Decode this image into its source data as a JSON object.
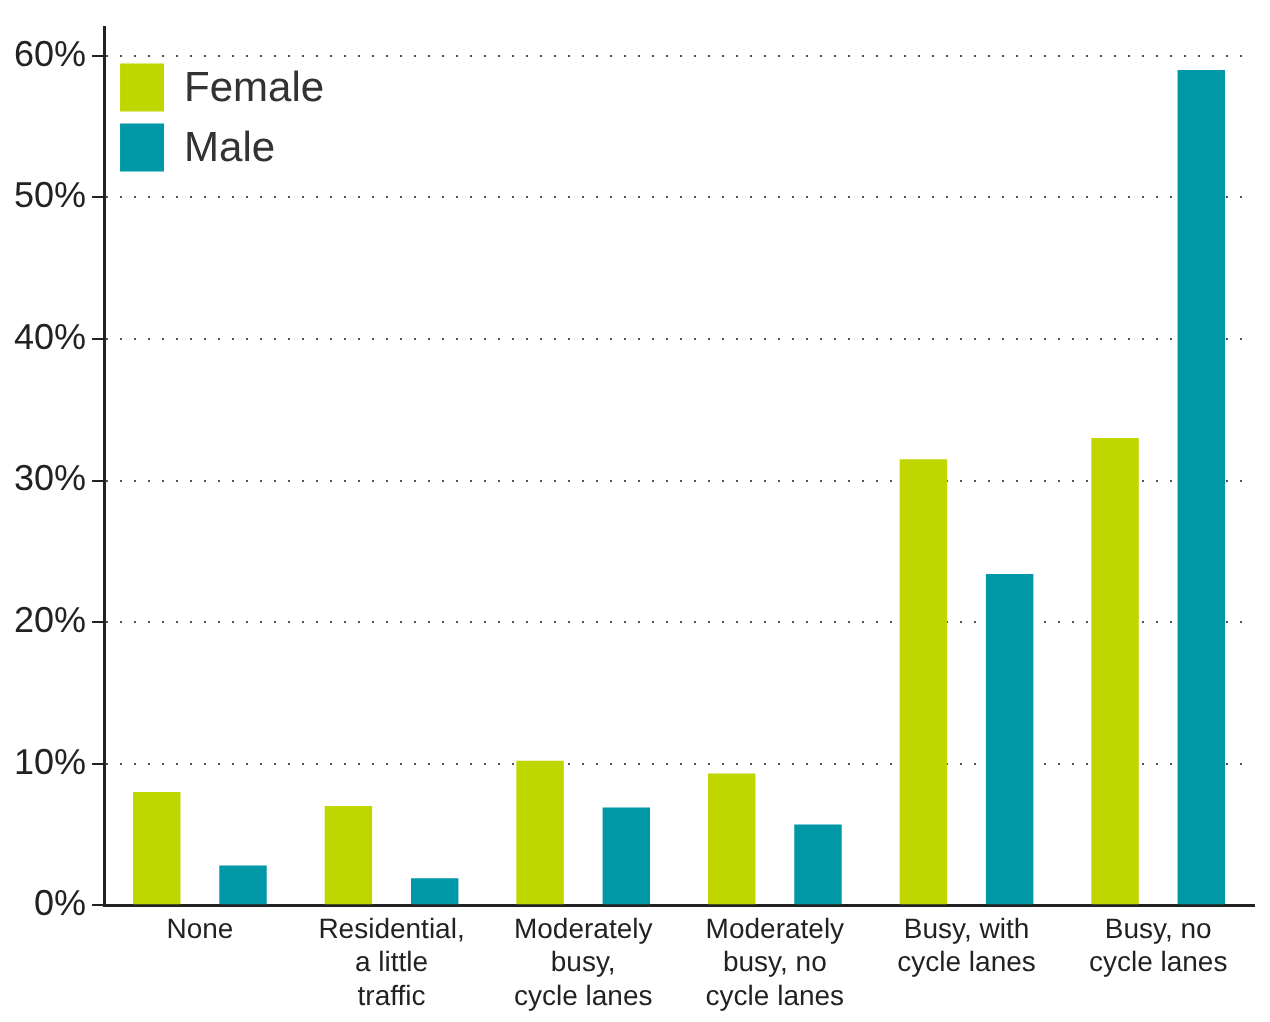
{
  "chart_data": {
    "type": "bar",
    "categories": [
      "None",
      "Residential,\na little\ntraffic",
      "Moderately\nbusy,\ncycle lanes",
      "Moderately\nbusy, no\ncycle lanes",
      "Busy, with\ncycle lanes",
      "Busy, no\ncycle lanes"
    ],
    "series": [
      {
        "name": "Female",
        "color": "#bfd600",
        "values": [
          8.0,
          7.0,
          10.2,
          9.3,
          31.5,
          33.0
        ]
      },
      {
        "name": "Male",
        "color": "#0097a7",
        "values": [
          2.8,
          1.9,
          6.9,
          5.7,
          23.4,
          59.0
        ]
      }
    ],
    "ylim": [
      0,
      62
    ],
    "yticks": [
      {
        "value": 0,
        "label": "0%"
      },
      {
        "value": 10,
        "label": "10%"
      },
      {
        "value": 20,
        "label": "20%"
      },
      {
        "value": 30,
        "label": "30%"
      },
      {
        "value": 40,
        "label": "40%"
      },
      {
        "value": 50,
        "label": "50%"
      },
      {
        "value": 60,
        "label": "60%"
      }
    ],
    "grid": "y",
    "legend": "top left"
  }
}
